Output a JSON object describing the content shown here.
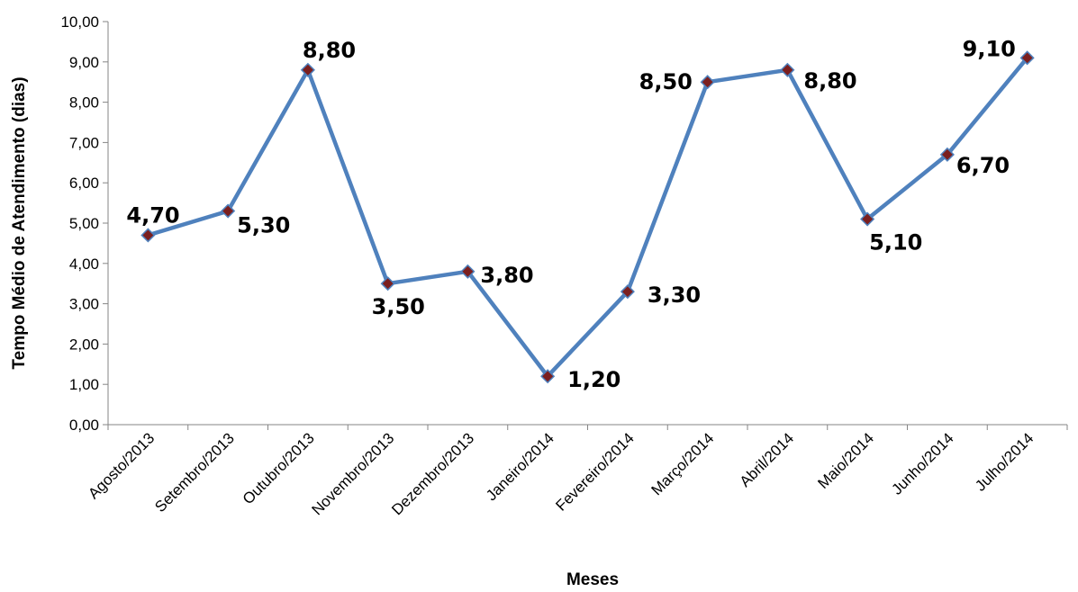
{
  "chart_data": {
    "type": "line",
    "title": "",
    "xlabel": "Meses",
    "ylabel": "Tempo Médio de Atendimento (dias)",
    "categories": [
      "Agosto/2013",
      "Setembro/2013",
      "Outubro/2013",
      "Novembro/2013",
      "Dezembro/2013",
      "Janeiro/2014",
      "Fevereiro/2014",
      "Março/2014",
      "Abril/2014",
      "Maio/2014",
      "Junho/2014",
      "Julho/2014"
    ],
    "series": [
      {
        "values": [
          4.7,
          5.3,
          8.8,
          3.5,
          3.8,
          1.2,
          3.3,
          8.5,
          8.8,
          5.1,
          6.7,
          9.1
        ],
        "labels": [
          "4,70",
          "5,30",
          "8,80",
          "3,50",
          "3,80",
          "1,20",
          "3,30",
          "8,50",
          "8,80",
          "5,10",
          "6,70",
          "9,10"
        ],
        "line_color": "#4f81bd",
        "marker_color": "#7b1f1f"
      }
    ],
    "ylim": [
      0,
      10
    ],
    "yticks": [
      "0,00",
      "1,00",
      "2,00",
      "3,00",
      "4,00",
      "5,00",
      "6,00",
      "7,00",
      "8,00",
      "9,00",
      "10,00"
    ],
    "grid": false,
    "legend": "none"
  }
}
